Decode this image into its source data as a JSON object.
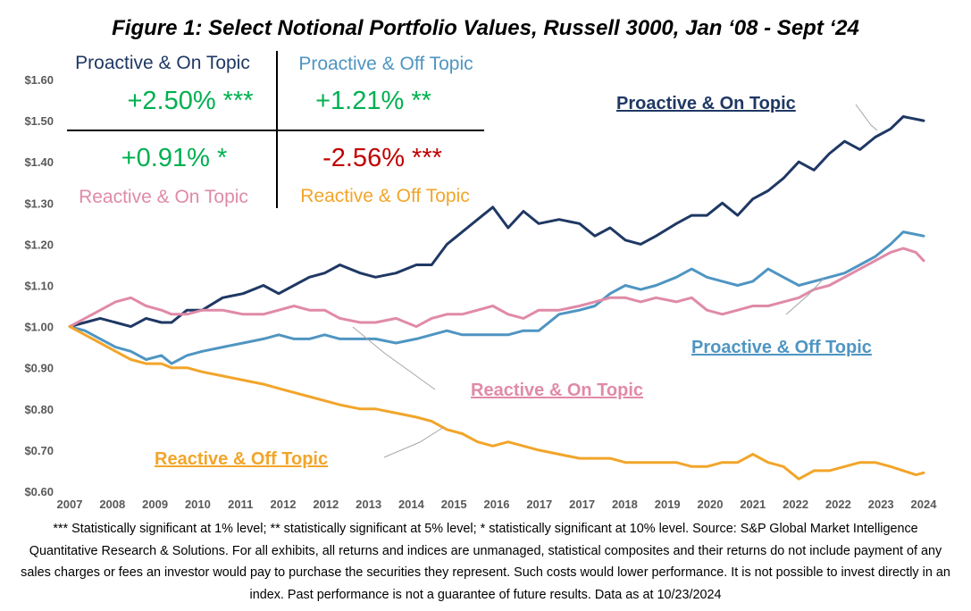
{
  "title": "Figure 1: Select Notional Portfolio Values, Russell 3000, Jan ‘08 - Sept ‘24",
  "quadrants": [
    {
      "name": "Proactive & On Topic",
      "value": "+2.50% ***",
      "name_color": "#1f3864",
      "value_color": "#00b050"
    },
    {
      "name": "Proactive & Off Topic",
      "value": "+1.21% **",
      "name_color": "#4f95c2",
      "value_color": "#00b050"
    },
    {
      "name": "Reactive & On Topic",
      "value": "+0.91% *",
      "name_color": "#e08aa8",
      "value_color": "#00b050"
    },
    {
      "name": "Reactive & Off Topic",
      "value": "-2.56% ***",
      "name_color": "#f2a52a",
      "value_color": "#c00000"
    }
  ],
  "callouts": [
    {
      "label": "Proactive & On Topic",
      "color": "#1f3864"
    },
    {
      "label": "Proactive & Off Topic",
      "color": "#4f95c2"
    },
    {
      "label": "Reactive & On Topic",
      "color": "#e08aa8"
    },
    {
      "label": "Reactive & Off Topic",
      "color": "#f2a52a"
    }
  ],
  "chart_data": {
    "type": "line",
    "title": "Figure 1: Select Notional Portfolio Values, Russell 3000, Jan ‘08 - Sept ‘24",
    "x_tick_labels": [
      "2007",
      "2008",
      "2009",
      "2010",
      "2011",
      "2012",
      "2012",
      "2013",
      "2014",
      "2015",
      "2016",
      "2017",
      "2017",
      "2018",
      "2019",
      "2020",
      "2021",
      "2022",
      "2022",
      "2023",
      "2024"
    ],
    "y_tick_labels": [
      "$0.60",
      "$0.70",
      "$0.80",
      "$0.90",
      "$1.00",
      "$1.10",
      "$1.20",
      "$1.30",
      "$1.40",
      "$1.50",
      "$1.60"
    ],
    "ylim": [
      0.6,
      1.6
    ],
    "x_range": [
      2008.0,
      2024.75
    ],
    "grid": false,
    "series": [
      {
        "name": "Proactive & On Topic",
        "color": "#1f3864",
        "points": [
          [
            2008.0,
            1.0
          ],
          [
            2008.3,
            1.01
          ],
          [
            2008.6,
            1.02
          ],
          [
            2008.9,
            1.01
          ],
          [
            2009.2,
            1.0
          ],
          [
            2009.5,
            1.02
          ],
          [
            2009.8,
            1.01
          ],
          [
            2010.0,
            1.01
          ],
          [
            2010.3,
            1.04
          ],
          [
            2010.6,
            1.04
          ],
          [
            2011.0,
            1.07
          ],
          [
            2011.4,
            1.08
          ],
          [
            2011.8,
            1.1
          ],
          [
            2012.1,
            1.08
          ],
          [
            2012.4,
            1.1
          ],
          [
            2012.7,
            1.12
          ],
          [
            2013.0,
            1.13
          ],
          [
            2013.3,
            1.15
          ],
          [
            2013.7,
            1.13
          ],
          [
            2014.0,
            1.12
          ],
          [
            2014.4,
            1.13
          ],
          [
            2014.8,
            1.15
          ],
          [
            2015.1,
            1.15
          ],
          [
            2015.4,
            1.2
          ],
          [
            2015.7,
            1.23
          ],
          [
            2016.0,
            1.26
          ],
          [
            2016.3,
            1.29
          ],
          [
            2016.6,
            1.24
          ],
          [
            2016.9,
            1.28
          ],
          [
            2017.2,
            1.25
          ],
          [
            2017.6,
            1.26
          ],
          [
            2018.0,
            1.25
          ],
          [
            2018.3,
            1.22
          ],
          [
            2018.6,
            1.24
          ],
          [
            2018.9,
            1.21
          ],
          [
            2019.2,
            1.2
          ],
          [
            2019.5,
            1.22
          ],
          [
            2019.9,
            1.25
          ],
          [
            2020.2,
            1.27
          ],
          [
            2020.5,
            1.27
          ],
          [
            2020.8,
            1.3
          ],
          [
            2021.1,
            1.27
          ],
          [
            2021.4,
            1.31
          ],
          [
            2021.7,
            1.33
          ],
          [
            2022.0,
            1.36
          ],
          [
            2022.3,
            1.4
          ],
          [
            2022.6,
            1.38
          ],
          [
            2022.9,
            1.42
          ],
          [
            2023.2,
            1.45
          ],
          [
            2023.5,
            1.43
          ],
          [
            2023.8,
            1.46
          ],
          [
            2024.1,
            1.48
          ],
          [
            2024.35,
            1.51
          ],
          [
            2024.75,
            1.5
          ]
        ]
      },
      {
        "name": "Proactive & Off Topic",
        "color": "#4f95c2",
        "points": [
          [
            2008.0,
            1.0
          ],
          [
            2008.3,
            0.99
          ],
          [
            2008.6,
            0.97
          ],
          [
            2008.9,
            0.95
          ],
          [
            2009.2,
            0.94
          ],
          [
            2009.5,
            0.92
          ],
          [
            2009.8,
            0.93
          ],
          [
            2010.0,
            0.91
          ],
          [
            2010.3,
            0.93
          ],
          [
            2010.6,
            0.94
          ],
          [
            2011.0,
            0.95
          ],
          [
            2011.4,
            0.96
          ],
          [
            2011.8,
            0.97
          ],
          [
            2012.1,
            0.98
          ],
          [
            2012.4,
            0.97
          ],
          [
            2012.7,
            0.97
          ],
          [
            2013.0,
            0.98
          ],
          [
            2013.3,
            0.97
          ],
          [
            2013.7,
            0.97
          ],
          [
            2014.0,
            0.97
          ],
          [
            2014.4,
            0.96
          ],
          [
            2014.8,
            0.97
          ],
          [
            2015.1,
            0.98
          ],
          [
            2015.4,
            0.99
          ],
          [
            2015.7,
            0.98
          ],
          [
            2016.0,
            0.98
          ],
          [
            2016.3,
            0.98
          ],
          [
            2016.6,
            0.98
          ],
          [
            2016.9,
            0.99
          ],
          [
            2017.2,
            0.99
          ],
          [
            2017.6,
            1.03
          ],
          [
            2018.0,
            1.04
          ],
          [
            2018.3,
            1.05
          ],
          [
            2018.6,
            1.08
          ],
          [
            2018.9,
            1.1
          ],
          [
            2019.2,
            1.09
          ],
          [
            2019.5,
            1.1
          ],
          [
            2019.9,
            1.12
          ],
          [
            2020.2,
            1.14
          ],
          [
            2020.5,
            1.12
          ],
          [
            2020.8,
            1.11
          ],
          [
            2021.1,
            1.1
          ],
          [
            2021.4,
            1.11
          ],
          [
            2021.7,
            1.14
          ],
          [
            2022.0,
            1.12
          ],
          [
            2022.3,
            1.1
          ],
          [
            2022.6,
            1.11
          ],
          [
            2022.9,
            1.12
          ],
          [
            2023.2,
            1.13
          ],
          [
            2023.5,
            1.15
          ],
          [
            2023.8,
            1.17
          ],
          [
            2024.1,
            1.2
          ],
          [
            2024.35,
            1.23
          ],
          [
            2024.75,
            1.22
          ]
        ]
      },
      {
        "name": "Reactive & On Topic",
        "color": "#e08aa8",
        "points": [
          [
            2008.0,
            1.0
          ],
          [
            2008.3,
            1.02
          ],
          [
            2008.6,
            1.04
          ],
          [
            2008.9,
            1.06
          ],
          [
            2009.2,
            1.07
          ],
          [
            2009.5,
            1.05
          ],
          [
            2009.8,
            1.04
          ],
          [
            2010.0,
            1.03
          ],
          [
            2010.3,
            1.03
          ],
          [
            2010.6,
            1.04
          ],
          [
            2011.0,
            1.04
          ],
          [
            2011.4,
            1.03
          ],
          [
            2011.8,
            1.03
          ],
          [
            2012.1,
            1.04
          ],
          [
            2012.4,
            1.05
          ],
          [
            2012.7,
            1.04
          ],
          [
            2013.0,
            1.04
          ],
          [
            2013.3,
            1.02
          ],
          [
            2013.7,
            1.01
          ],
          [
            2014.0,
            1.01
          ],
          [
            2014.4,
            1.02
          ],
          [
            2014.8,
            1.0
          ],
          [
            2015.1,
            1.02
          ],
          [
            2015.4,
            1.03
          ],
          [
            2015.7,
            1.03
          ],
          [
            2016.0,
            1.04
          ],
          [
            2016.3,
            1.05
          ],
          [
            2016.6,
            1.03
          ],
          [
            2016.9,
            1.02
          ],
          [
            2017.2,
            1.04
          ],
          [
            2017.6,
            1.04
          ],
          [
            2018.0,
            1.05
          ],
          [
            2018.3,
            1.06
          ],
          [
            2018.6,
            1.07
          ],
          [
            2018.9,
            1.07
          ],
          [
            2019.2,
            1.06
          ],
          [
            2019.5,
            1.07
          ],
          [
            2019.9,
            1.06
          ],
          [
            2020.2,
            1.07
          ],
          [
            2020.5,
            1.04
          ],
          [
            2020.8,
            1.03
          ],
          [
            2021.1,
            1.04
          ],
          [
            2021.4,
            1.05
          ],
          [
            2021.7,
            1.05
          ],
          [
            2022.0,
            1.06
          ],
          [
            2022.3,
            1.07
          ],
          [
            2022.6,
            1.09
          ],
          [
            2022.9,
            1.1
          ],
          [
            2023.2,
            1.12
          ],
          [
            2023.5,
            1.14
          ],
          [
            2023.8,
            1.16
          ],
          [
            2024.1,
            1.18
          ],
          [
            2024.35,
            1.19
          ],
          [
            2024.6,
            1.18
          ],
          [
            2024.75,
            1.16
          ]
        ]
      },
      {
        "name": "Reactive & Off Topic",
        "color": "#f2a52a",
        "points": [
          [
            2008.0,
            1.0
          ],
          [
            2008.3,
            0.98
          ],
          [
            2008.6,
            0.96
          ],
          [
            2008.9,
            0.94
          ],
          [
            2009.2,
            0.92
          ],
          [
            2009.5,
            0.91
          ],
          [
            2009.8,
            0.91
          ],
          [
            2010.0,
            0.9
          ],
          [
            2010.3,
            0.9
          ],
          [
            2010.6,
            0.89
          ],
          [
            2011.0,
            0.88
          ],
          [
            2011.4,
            0.87
          ],
          [
            2011.8,
            0.86
          ],
          [
            2012.1,
            0.85
          ],
          [
            2012.4,
            0.84
          ],
          [
            2012.7,
            0.83
          ],
          [
            2013.0,
            0.82
          ],
          [
            2013.3,
            0.81
          ],
          [
            2013.7,
            0.8
          ],
          [
            2014.0,
            0.8
          ],
          [
            2014.4,
            0.79
          ],
          [
            2014.8,
            0.78
          ],
          [
            2015.1,
            0.77
          ],
          [
            2015.4,
            0.75
          ],
          [
            2015.7,
            0.74
          ],
          [
            2016.0,
            0.72
          ],
          [
            2016.3,
            0.71
          ],
          [
            2016.6,
            0.72
          ],
          [
            2016.9,
            0.71
          ],
          [
            2017.2,
            0.7
          ],
          [
            2017.6,
            0.69
          ],
          [
            2018.0,
            0.68
          ],
          [
            2018.3,
            0.68
          ],
          [
            2018.6,
            0.68
          ],
          [
            2018.9,
            0.67
          ],
          [
            2019.2,
            0.67
          ],
          [
            2019.5,
            0.67
          ],
          [
            2019.9,
            0.67
          ],
          [
            2020.2,
            0.66
          ],
          [
            2020.5,
            0.66
          ],
          [
            2020.8,
            0.67
          ],
          [
            2021.1,
            0.67
          ],
          [
            2021.4,
            0.69
          ],
          [
            2021.7,
            0.67
          ],
          [
            2022.0,
            0.66
          ],
          [
            2022.3,
            0.63
          ],
          [
            2022.6,
            0.65
          ],
          [
            2022.9,
            0.65
          ],
          [
            2023.2,
            0.66
          ],
          [
            2023.5,
            0.67
          ],
          [
            2023.8,
            0.67
          ],
          [
            2024.1,
            0.66
          ],
          [
            2024.35,
            0.65
          ],
          [
            2024.6,
            0.64
          ],
          [
            2024.75,
            0.645
          ]
        ]
      }
    ]
  },
  "footnote": "*** Statistically significant at 1% level; ** statistically significant at 5% level; * statistically significant at 10% level. Source: S&P Global Market Intelligence Quantitative Research & Solutions. For all exhibits, all returns and indices are unmanaged, statistical composites and their returns do not include payment of any sales charges or fees an investor would pay to purchase the securities they represent. Such costs would lower performance. It is not possible to invest directly in an index. Past performance is not a guarantee of future results. Data as at 10/23/2024"
}
